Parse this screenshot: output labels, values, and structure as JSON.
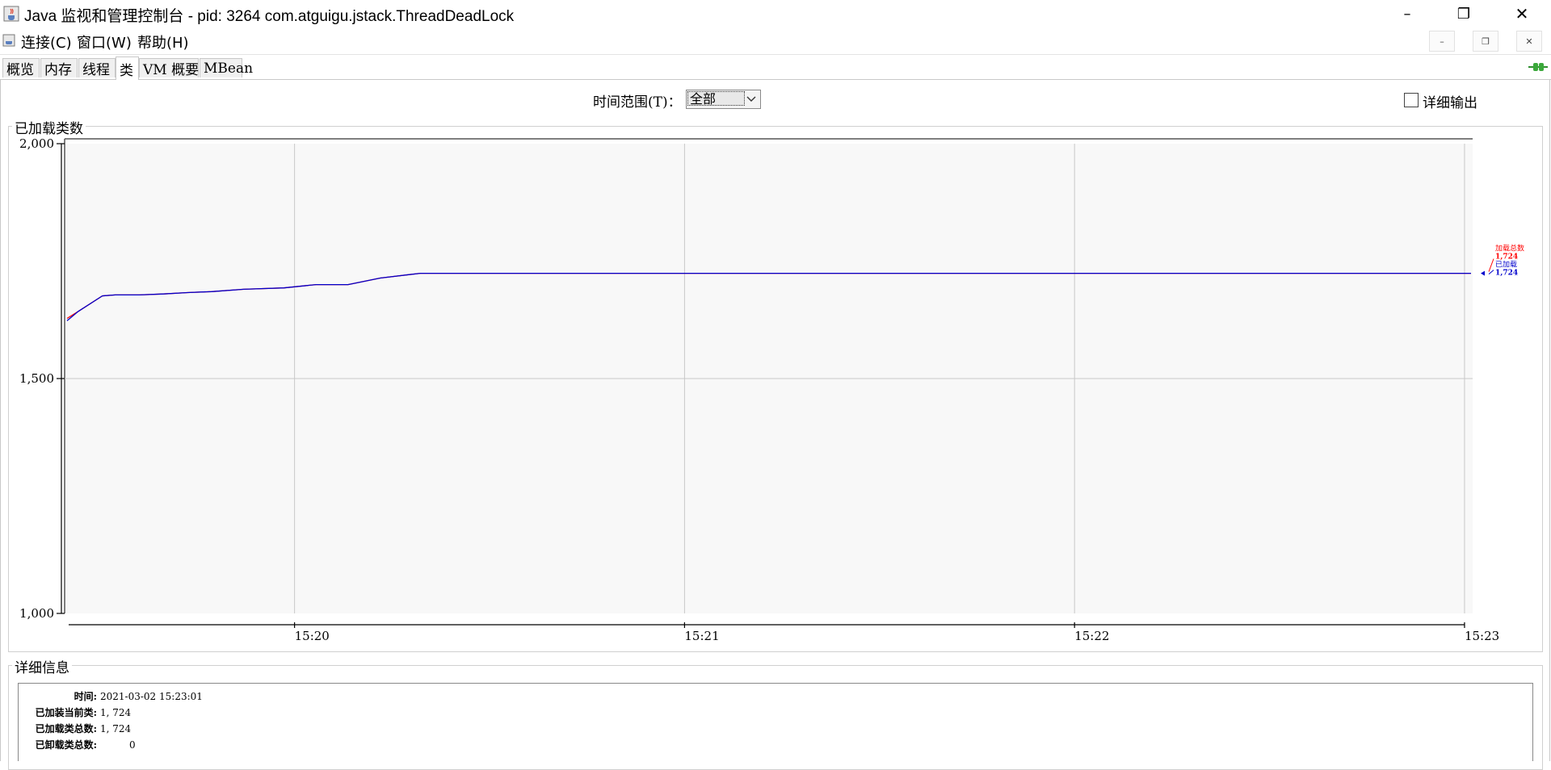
{
  "window": {
    "title": "Java 监视和管理控制台 - pid: 3264 com.atguigu.jstack.ThreadDeadLock",
    "minimize": "–",
    "maximize": "❐",
    "close": "✕"
  },
  "menu": {
    "items": [
      "连接(C)",
      "窗口(W)",
      "帮助(H)"
    ],
    "mdi_buttons": [
      "–",
      "❐",
      "✕"
    ]
  },
  "tabs": {
    "items": [
      "概览",
      "内存",
      "线程",
      "类",
      "VM 概要",
      "MBean"
    ],
    "selected": "类"
  },
  "controls": {
    "range_label": "时间范围(T)：",
    "range_value": "全部",
    "verbose_label": "详细输出",
    "verbose_checked": false
  },
  "chart": {
    "group_title": "已加载类数"
  },
  "chart_data": {
    "type": "line",
    "ylim": [
      1000,
      2000
    ],
    "yticks": [
      "2,000",
      "1,500",
      "1,000"
    ],
    "xticks": [
      "15:20",
      "15:21",
      "15:22",
      "15:23"
    ],
    "grid": true,
    "legend_placement": "right",
    "series": [
      {
        "name": "加载总数",
        "color": "#ff0000",
        "end_label": "1,724",
        "points": [
          [
            "15:19:25",
            1628
          ],
          [
            "15:19:30",
            1643
          ],
          [
            "15:19:34",
            1676
          ],
          [
            "15:19:38",
            1678
          ],
          [
            "15:19:47",
            1678
          ],
          [
            "15:19:50",
            1680
          ],
          [
            "15:19:53",
            1683
          ],
          [
            "15:19:57",
            1685
          ],
          [
            "15:20:00",
            1690
          ],
          [
            "15:19:52",
            1693
          ],
          [
            "15:19:55",
            1700
          ],
          [
            "15:19:57",
            1700
          ],
          [
            "15:20:00",
            1714
          ],
          [
            "15:20:05",
            1724
          ],
          [
            "15:23:01",
            1724
          ]
        ]
      },
      {
        "name": "已加载",
        "color": "#0000cc",
        "end_label": "1,724",
        "points": [
          [
            "15:19:25",
            1623
          ],
          [
            "15:19:30",
            1643
          ],
          [
            "15:19:34",
            1676
          ],
          [
            "15:19:38",
            1678
          ],
          [
            "15:19:47",
            1678
          ],
          [
            "15:19:50",
            1680
          ],
          [
            "15:19:53",
            1683
          ],
          [
            "15:19:57",
            1685
          ],
          [
            "15:20:00",
            1690
          ],
          [
            "15:19:52",
            1693
          ],
          [
            "15:19:55",
            1700
          ],
          [
            "15:19:57",
            1700
          ],
          [
            "15:20:00",
            1714
          ],
          [
            "15:20:05",
            1724
          ],
          [
            "15:23:01",
            1724
          ]
        ]
      }
    ]
  },
  "details": {
    "group_title": "详细信息",
    "rows": [
      {
        "label": "时间:",
        "value": "2021-03-02 15:23:01"
      },
      {
        "label": "已加装当前类:",
        "value": "1, 724"
      },
      {
        "label": "已加载类总数:",
        "value": "1, 724"
      },
      {
        "label": "已卸载类总数:",
        "value": "0"
      }
    ]
  },
  "colors": {
    "plot_bg": "#f8f8f8",
    "grid": "#c8c8c8",
    "loaded_total": "#ff0000",
    "loaded": "#0000cc"
  }
}
